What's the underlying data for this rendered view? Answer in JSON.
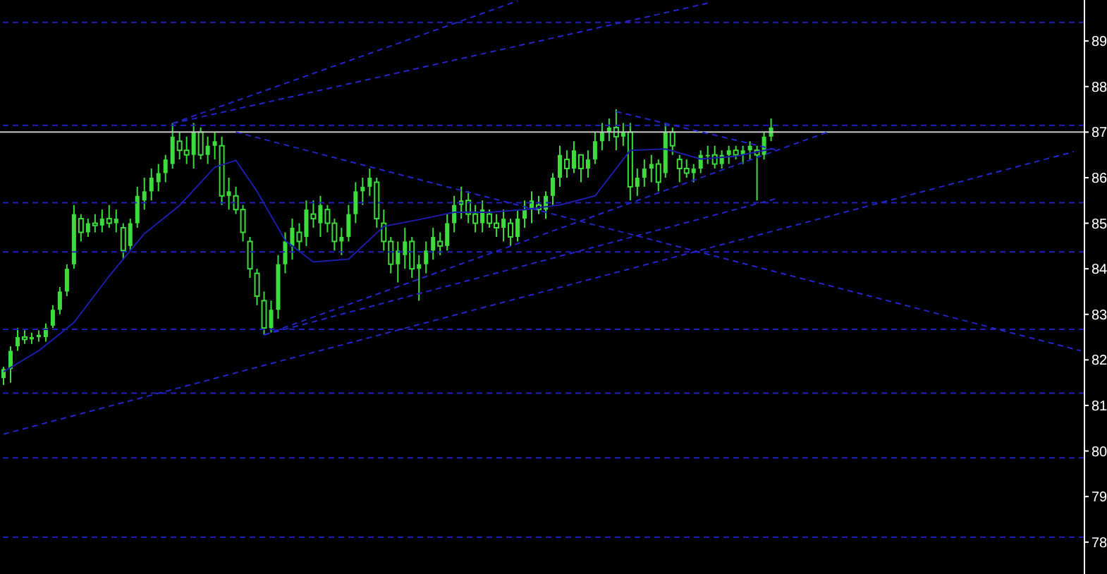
{
  "chart_data": {
    "type": "candlestick",
    "color": "#3ddc3d",
    "categories": [
      null,
      null,
      null,
      null,
      null,
      null,
      null,
      null,
      null,
      null,
      null,
      null,
      null,
      null,
      null,
      null,
      null,
      null,
      null,
      null,
      null,
      null,
      null,
      null,
      null,
      null,
      null,
      null,
      null,
      null,
      null,
      null,
      null,
      null,
      null,
      null,
      null,
      null,
      null,
      null,
      null,
      null,
      null,
      null,
      null,
      null,
      null,
      null,
      null,
      null,
      null,
      null,
      null,
      null,
      null,
      null,
      null,
      null,
      null,
      null,
      null,
      null,
      null,
      null,
      null,
      null,
      null,
      null,
      null,
      null,
      null,
      null,
      null,
      null,
      null,
      null,
      null,
      null,
      null,
      null,
      null,
      null,
      null,
      null,
      null,
      null,
      null,
      null,
      null,
      null,
      null,
      null,
      null,
      null,
      null,
      null,
      null,
      null,
      null,
      null,
      null,
      null,
      null,
      null,
      null,
      null,
      null,
      null,
      null,
      null,
      null,
      null,
      null,
      null,
      null,
      null,
      null,
      null,
      null,
      null,
      null,
      null,
      null,
      null,
      null,
      null,
      null,
      null,
      null,
      null,
      null,
      null,
      null,
      null,
      null,
      null,
      null,
      null,
      null,
      null,
      null,
      null,
      null,
      null,
      null,
      null,
      null,
      null,
      null,
      null,
      null,
      null,
      null,
      null
    ],
    "ohlc": [
      [
        81.6,
        81.85,
        81.45,
        81.8
      ],
      [
        81.8,
        82.3,
        81.5,
        82.2
      ],
      [
        82.3,
        82.7,
        82.2,
        82.5
      ],
      [
        82.5,
        82.65,
        82.35,
        82.45
      ],
      [
        82.45,
        82.6,
        82.35,
        82.5
      ],
      [
        82.5,
        82.65,
        82.4,
        82.55
      ],
      [
        82.5,
        82.8,
        82.4,
        82.7
      ],
      [
        82.75,
        83.2,
        82.7,
        83.1
      ],
      [
        83.1,
        83.6,
        83.0,
        83.5
      ],
      [
        83.5,
        84.1,
        83.4,
        84.0
      ],
      [
        84.1,
        85.4,
        84.0,
        85.2
      ],
      [
        85.1,
        85.2,
        84.6,
        84.8
      ],
      [
        84.8,
        85.1,
        84.7,
        85.0
      ],
      [
        85.0,
        85.2,
        84.8,
        84.95
      ],
      [
        84.95,
        85.3,
        84.8,
        85.1
      ],
      [
        85.1,
        85.4,
        84.9,
        85.0
      ],
      [
        85.0,
        85.3,
        84.8,
        85.1
      ],
      [
        84.9,
        85.0,
        84.2,
        84.4
      ],
      [
        84.5,
        85.1,
        84.4,
        85.0
      ],
      [
        85.0,
        85.8,
        84.9,
        85.6
      ],
      [
        85.5,
        86.0,
        85.3,
        85.7
      ],
      [
        85.7,
        86.2,
        85.5,
        86.0
      ],
      [
        85.9,
        86.3,
        85.7,
        86.1
      ],
      [
        86.1,
        86.5,
        85.9,
        86.4
      ],
      [
        86.3,
        87.2,
        86.2,
        86.9
      ],
      [
        86.8,
        87.0,
        86.4,
        86.6
      ],
      [
        86.6,
        86.9,
        86.3,
        86.5
      ],
      [
        86.5,
        87.2,
        86.2,
        87.0
      ],
      [
        87.0,
        87.1,
        86.4,
        86.5
      ],
      [
        86.5,
        86.9,
        86.3,
        86.7
      ],
      [
        86.7,
        87.0,
        86.4,
        86.8
      ],
      [
        86.7,
        86.9,
        85.4,
        85.6
      ],
      [
        85.6,
        86.0,
        85.3,
        85.7
      ],
      [
        85.6,
        85.8,
        85.2,
        85.3
      ],
      [
        85.3,
        85.4,
        84.6,
        84.8
      ],
      [
        84.6,
        84.7,
        83.8,
        84.0
      ],
      [
        83.9,
        84.0,
        83.2,
        83.4
      ],
      [
        83.3,
        83.5,
        82.55,
        82.7
      ],
      [
        82.7,
        83.3,
        82.6,
        83.1
      ],
      [
        83.1,
        84.3,
        82.9,
        84.1
      ],
      [
        84.1,
        84.8,
        83.9,
        84.6
      ],
      [
        84.5,
        85.1,
        84.2,
        84.9
      ],
      [
        84.8,
        85.0,
        84.4,
        84.6
      ],
      [
        84.7,
        85.5,
        84.5,
        85.3
      ],
      [
        85.2,
        85.5,
        84.9,
        85.1
      ],
      [
        85.0,
        85.6,
        84.7,
        85.4
      ],
      [
        85.3,
        85.4,
        84.8,
        85.0
      ],
      [
        85.0,
        85.1,
        84.4,
        84.6
      ],
      [
        84.6,
        84.9,
        84.3,
        84.7
      ],
      [
        84.7,
        85.4,
        84.6,
        85.2
      ],
      [
        85.2,
        85.9,
        85.0,
        85.7
      ],
      [
        85.7,
        86.0,
        85.4,
        85.8
      ],
      [
        85.8,
        86.2,
        85.6,
        86.0
      ],
      [
        85.9,
        86.0,
        84.9,
        85.1
      ],
      [
        85.0,
        85.3,
        84.4,
        84.6
      ],
      [
        84.6,
        84.7,
        83.9,
        84.1
      ],
      [
        84.1,
        84.6,
        83.7,
        84.4
      ],
      [
        84.3,
        84.9,
        84.0,
        84.6
      ],
      [
        84.6,
        84.7,
        83.8,
        84.0
      ],
      [
        84.0,
        84.3,
        83.3,
        84.1
      ],
      [
        84.1,
        84.6,
        83.9,
        84.4
      ],
      [
        84.4,
        84.9,
        84.2,
        84.7
      ],
      [
        84.6,
        84.8,
        84.3,
        84.5
      ],
      [
        84.5,
        85.2,
        84.4,
        85.0
      ],
      [
        85.0,
        85.6,
        84.8,
        85.4
      ],
      [
        85.4,
        85.8,
        85.1,
        85.5
      ],
      [
        85.5,
        85.7,
        85.0,
        85.2
      ],
      [
        85.2,
        85.4,
        84.8,
        85.0
      ],
      [
        85.0,
        85.5,
        84.8,
        85.3
      ],
      [
        85.2,
        85.3,
        84.9,
        85.0
      ],
      [
        85.0,
        85.2,
        84.7,
        84.9
      ],
      [
        84.9,
        85.3,
        84.6,
        85.1
      ],
      [
        85.0,
        85.1,
        84.5,
        84.7
      ],
      [
        84.7,
        85.3,
        84.6,
        85.1
      ],
      [
        85.1,
        85.5,
        84.9,
        85.3
      ],
      [
        85.3,
        85.7,
        85.0,
        85.5
      ],
      [
        85.4,
        85.6,
        85.2,
        85.3
      ],
      [
        85.3,
        85.7,
        85.1,
        85.6
      ],
      [
        85.6,
        86.1,
        85.4,
        86.0
      ],
      [
        86.0,
        86.7,
        85.8,
        86.5
      ],
      [
        86.4,
        86.6,
        86.0,
        86.2
      ],
      [
        86.2,
        86.8,
        86.1,
        86.6
      ],
      [
        86.5,
        86.5,
        85.9,
        86.2
      ],
      [
        86.2,
        86.6,
        86.0,
        86.4
      ],
      [
        86.4,
        87.0,
        86.3,
        86.8
      ],
      [
        86.8,
        87.2,
        86.6,
        87.0
      ],
      [
        87.0,
        87.3,
        86.8,
        87.1
      ],
      [
        87.1,
        87.5,
        86.6,
        86.9
      ],
      [
        86.9,
        87.2,
        86.7,
        87.0
      ],
      [
        87.0,
        87.2,
        85.5,
        85.8
      ],
      [
        85.8,
        86.2,
        85.6,
        86.0
      ],
      [
        86.0,
        86.4,
        85.8,
        86.2
      ],
      [
        86.2,
        86.5,
        85.9,
        86.3
      ],
      [
        86.3,
        86.4,
        85.7,
        85.9
      ],
      [
        86.1,
        87.2,
        86.0,
        87.0
      ],
      [
        87.0,
        87.1,
        86.5,
        86.7
      ],
      [
        86.4,
        86.5,
        85.9,
        86.2
      ],
      [
        86.2,
        86.4,
        86.0,
        86.1
      ],
      [
        86.1,
        86.3,
        85.9,
        86.2
      ],
      [
        86.2,
        86.6,
        86.1,
        86.5
      ],
      [
        86.5,
        86.7,
        86.3,
        86.5
      ],
      [
        86.5,
        86.7,
        86.2,
        86.3
      ],
      [
        86.3,
        86.6,
        86.2,
        86.5
      ],
      [
        86.5,
        86.7,
        86.3,
        86.6
      ],
      [
        86.6,
        86.7,
        86.4,
        86.5
      ],
      [
        86.5,
        86.7,
        86.3,
        86.6
      ],
      [
        86.6,
        86.8,
        86.4,
        86.7
      ],
      [
        86.6,
        86.7,
        85.5,
        86.5
      ],
      [
        86.5,
        87.0,
        86.4,
        86.9
      ],
      [
        86.9,
        87.3,
        86.8,
        87.1
      ],
      null,
      null,
      null,
      null,
      null,
      null,
      null,
      null,
      null,
      null,
      null,
      null,
      null,
      null,
      null,
      null,
      null,
      null,
      null,
      null,
      null,
      null,
      null,
      null,
      null,
      null,
      null,
      null,
      null,
      null,
      null,
      null,
      null,
      null,
      null,
      null,
      null,
      null,
      null,
      null,
      null,
      null,
      null,
      null
    ],
    "series": [
      {
        "type": "line",
        "color": "#1c1ca8",
        "line_style": "solid",
        "values": [
          81.74,
          null,
          null,
          null,
          null,
          82.2,
          null,
          null,
          null,
          null,
          82.82,
          null,
          null,
          null,
          null,
          83.84,
          null,
          null,
          null,
          null,
          84.77,
          null,
          null,
          null,
          null,
          85.39,
          null,
          null,
          null,
          null,
          86.23,
          null,
          null,
          86.38,
          null,
          null,
          85.7,
          null,
          null,
          null,
          84.62,
          null,
          null,
          null,
          84.15,
          null,
          null,
          null,
          null,
          84.21,
          null,
          null,
          null,
          null,
          84.93,
          null,
          null,
          null,
          null,
          85.08,
          null,
          null,
          null,
          null,
          85.24,
          null,
          null,
          null,
          null,
          85.24,
          null,
          null,
          null,
          null,
          85.3,
          null,
          null,
          null,
          null,
          85.4,
          null,
          null,
          null,
          null,
          85.6,
          null,
          null,
          null,
          null,
          86.6,
          null,
          null,
          null,
          null,
          86.63,
          null,
          null,
          null,
          null,
          86.41,
          null,
          null,
          null,
          null,
          86.47,
          null,
          null,
          null,
          null,
          86.63,
          null,
          null,
          null,
          null,
          null,
          null,
          null,
          null,
          null,
          null,
          null,
          null,
          null,
          null,
          null,
          null,
          null,
          null,
          null,
          null,
          null,
          null,
          null,
          null,
          null,
          null,
          null,
          null,
          null,
          null,
          null,
          null,
          null,
          null,
          null,
          null,
          null,
          null,
          null,
          null,
          null,
          null,
          null,
          null
        ]
      },
      {
        "type": "line",
        "color": "#2424c8",
        "line_style": "dashed",
        "values": [
          null,
          null,
          null,
          null,
          null,
          null,
          null,
          null,
          null,
          null,
          null,
          null,
          null,
          null,
          null,
          null,
          null,
          null,
          null,
          null,
          null,
          null,
          null,
          null,
          87.19,
          null,
          null,
          null,
          null,
          null,
          null,
          null,
          null,
          null,
          null,
          null,
          null,
          null,
          null,
          null,
          null,
          null,
          null,
          null,
          null,
          null,
          null,
          null,
          null,
          null,
          null,
          null,
          null,
          null,
          null,
          null,
          null,
          null,
          null,
          null,
          null,
          null,
          null,
          null,
          null,
          null,
          null,
          null,
          null,
          null,
          null,
          null,
          null,
          89.88,
          null,
          null,
          null,
          null,
          null,
          null,
          null,
          null,
          null,
          null,
          null,
          null,
          null,
          null,
          null,
          null,
          null,
          null,
          null,
          null,
          null,
          null,
          null,
          null,
          null,
          null,
          null,
          null,
          null,
          null,
          null,
          null,
          null,
          null,
          null,
          null,
          null,
          null,
          null,
          null,
          null,
          null,
          null,
          null,
          null,
          null,
          null,
          null,
          null,
          null,
          null,
          null,
          null,
          null,
          null,
          null,
          null,
          null,
          null,
          null,
          null,
          null,
          null,
          null,
          null,
          null,
          null,
          null,
          null,
          null,
          null,
          null,
          null,
          null,
          null,
          null,
          null,
          null,
          null,
          null
        ]
      },
      {
        "type": "line",
        "color": "#2424c8",
        "line_style": "dashed",
        "values": [
          null,
          null,
          null,
          null,
          null,
          null,
          null,
          null,
          null,
          null,
          null,
          null,
          null,
          null,
          null,
          null,
          null,
          null,
          null,
          null,
          null,
          null,
          null,
          null,
          87.19,
          null,
          null,
          null,
          null,
          null,
          null,
          null,
          null,
          null,
          null,
          null,
          null,
          null,
          null,
          null,
          null,
          null,
          null,
          null,
          null,
          null,
          null,
          null,
          null,
          null,
          null,
          null,
          null,
          null,
          null,
          null,
          null,
          null,
          null,
          null,
          null,
          null,
          null,
          null,
          null,
          null,
          null,
          null,
          null,
          null,
          null,
          null,
          null,
          null,
          null,
          null,
          null,
          null,
          null,
          null,
          null,
          null,
          null,
          null,
          null,
          null,
          null,
          null,
          null,
          null,
          null,
          null,
          null,
          null,
          null,
          null,
          null,
          null,
          null,
          null,
          89.83,
          null,
          null,
          null,
          null,
          null,
          null,
          null,
          null,
          null,
          null,
          null,
          null,
          null,
          null,
          null,
          null,
          null,
          null,
          null,
          null,
          null,
          null,
          null,
          null,
          null,
          null,
          null,
          null,
          null,
          null,
          null,
          null,
          null,
          null,
          null,
          null,
          null,
          null,
          null,
          null,
          null,
          null,
          null,
          null,
          null,
          null,
          null,
          null,
          null,
          null,
          null,
          null,
          null
        ]
      },
      {
        "type": "line",
        "color": "#2424c8",
        "line_style": "dashed",
        "values": [
          null,
          null,
          null,
          null,
          null,
          null,
          null,
          null,
          null,
          null,
          null,
          null,
          null,
          null,
          null,
          null,
          null,
          null,
          null,
          null,
          null,
          null,
          null,
          null,
          null,
          null,
          null,
          null,
          null,
          null,
          null,
          null,
          null,
          87.0,
          null,
          null,
          null,
          null,
          null,
          null,
          null,
          null,
          null,
          null,
          null,
          null,
          null,
          null,
          null,
          null,
          null,
          null,
          null,
          null,
          null,
          null,
          null,
          null,
          null,
          null,
          null,
          null,
          null,
          null,
          null,
          null,
          null,
          null,
          null,
          null,
          null,
          null,
          null,
          null,
          null,
          null,
          null,
          null,
          null,
          null,
          null,
          null,
          null,
          null,
          null,
          null,
          null,
          null,
          null,
          null,
          null,
          null,
          null,
          null,
          null,
          null,
          null,
          null,
          null,
          null,
          null,
          null,
          null,
          null,
          null,
          null,
          null,
          null,
          null,
          null,
          null,
          null,
          null,
          null,
          null,
          null,
          null,
          null,
          null,
          null,
          null,
          null,
          null,
          null,
          null,
          null,
          null,
          null,
          null,
          null,
          null,
          null,
          null,
          null,
          null,
          null,
          null,
          null,
          null,
          null,
          null,
          null,
          null,
          null,
          null,
          null,
          null,
          null,
          null,
          null,
          null,
          null,
          null,
          82.2
        ]
      },
      {
        "type": "line",
        "color": "#2424c8",
        "line_style": "dashed",
        "values": [
          80.37,
          null,
          null,
          null,
          null,
          null,
          null,
          null,
          null,
          null,
          null,
          null,
          null,
          null,
          null,
          null,
          null,
          null,
          null,
          null,
          null,
          null,
          null,
          null,
          null,
          null,
          null,
          null,
          null,
          null,
          null,
          null,
          null,
          null,
          null,
          null,
          null,
          null,
          null,
          null,
          null,
          null,
          null,
          null,
          null,
          null,
          null,
          null,
          null,
          null,
          null,
          null,
          null,
          null,
          null,
          null,
          null,
          null,
          null,
          null,
          null,
          null,
          null,
          null,
          null,
          null,
          null,
          null,
          null,
          null,
          null,
          null,
          null,
          null,
          null,
          null,
          null,
          null,
          null,
          null,
          null,
          null,
          null,
          null,
          null,
          null,
          null,
          null,
          null,
          null,
          null,
          null,
          null,
          null,
          null,
          null,
          null,
          null,
          null,
          null,
          null,
          null,
          null,
          null,
          null,
          null,
          null,
          null,
          null,
          null,
          null,
          null,
          null,
          null,
          null,
          null,
          null,
          null,
          null,
          null,
          null,
          null,
          null,
          null,
          null,
          null,
          null,
          null,
          null,
          null,
          null,
          null,
          null,
          null,
          null,
          null,
          null,
          null,
          null,
          null,
          null,
          null,
          null,
          null,
          null,
          null,
          null,
          null,
          null,
          null,
          null,
          null,
          86.57,
          null
        ]
      },
      {
        "type": "line",
        "color": "#2424c8",
        "line_style": "dashed",
        "values": [
          null,
          null,
          null,
          null,
          null,
          null,
          null,
          null,
          null,
          null,
          null,
          null,
          null,
          null,
          null,
          null,
          null,
          null,
          null,
          null,
          null,
          null,
          null,
          null,
          null,
          null,
          null,
          null,
          null,
          null,
          null,
          null,
          null,
          null,
          null,
          null,
          null,
          82.55,
          null,
          null,
          null,
          null,
          null,
          null,
          null,
          null,
          null,
          null,
          null,
          null,
          null,
          null,
          null,
          null,
          null,
          null,
          null,
          null,
          null,
          null,
          null,
          null,
          null,
          null,
          null,
          null,
          null,
          null,
          null,
          null,
          null,
          null,
          null,
          null,
          null,
          null,
          null,
          null,
          null,
          null,
          null,
          null,
          null,
          null,
          null,
          null,
          null,
          null,
          null,
          null,
          null,
          null,
          null,
          null,
          null,
          null,
          null,
          null,
          null,
          null,
          null,
          null,
          null,
          null,
          null,
          null,
          null,
          null,
          null,
          null,
          null,
          null,
          null,
          null,
          null,
          null,
          null,
          87.0,
          null,
          null,
          null,
          null,
          null,
          null,
          null,
          null,
          null,
          null,
          null,
          null,
          null,
          null,
          null,
          null,
          null,
          null,
          null,
          null,
          null,
          null,
          null,
          null,
          null,
          null,
          null,
          null,
          null,
          null,
          null,
          null,
          null,
          null,
          null,
          null
        ]
      },
      {
        "type": "line",
        "color": "#2424c8",
        "line_style": "dashed",
        "values": [
          null,
          null,
          null,
          null,
          null,
          null,
          null,
          null,
          null,
          null,
          null,
          null,
          null,
          null,
          null,
          null,
          null,
          null,
          null,
          null,
          null,
          null,
          null,
          null,
          null,
          null,
          null,
          null,
          null,
          null,
          null,
          null,
          null,
          null,
          null,
          null,
          null,
          82.55,
          null,
          null,
          null,
          null,
          null,
          null,
          null,
          null,
          null,
          null,
          null,
          null,
          null,
          null,
          null,
          null,
          null,
          null,
          null,
          null,
          null,
          null,
          null,
          null,
          null,
          null,
          null,
          null,
          null,
          null,
          null,
          null,
          null,
          null,
          null,
          null,
          null,
          null,
          null,
          null,
          null,
          null,
          null,
          null,
          null,
          null,
          null,
          null,
          null,
          null,
          null,
          null,
          null,
          null,
          null,
          null,
          null,
          null,
          null,
          null,
          null,
          null,
          null,
          null,
          null,
          null,
          null,
          null,
          null,
          null,
          null,
          null,
          85.55,
          null,
          null,
          null,
          null,
          null,
          null,
          null,
          null,
          null,
          null,
          null,
          null,
          null,
          null,
          null,
          null,
          null,
          null,
          null,
          null,
          null,
          null,
          null,
          null,
          null,
          null,
          null,
          null,
          null,
          null,
          null,
          null,
          null,
          null,
          null,
          null,
          null,
          null,
          null,
          null,
          null,
          null,
          null
        ]
      },
      {
        "type": "line",
        "color": "#2424c8",
        "line_style": "dashed",
        "values": [
          null,
          null,
          null,
          null,
          null,
          null,
          null,
          null,
          null,
          null,
          null,
          null,
          null,
          null,
          null,
          null,
          null,
          null,
          null,
          null,
          null,
          null,
          null,
          null,
          null,
          null,
          null,
          null,
          null,
          null,
          null,
          null,
          null,
          null,
          null,
          null,
          null,
          null,
          null,
          null,
          null,
          null,
          null,
          null,
          null,
          null,
          null,
          null,
          null,
          null,
          null,
          null,
          null,
          null,
          null,
          null,
          null,
          null,
          null,
          null,
          null,
          null,
          null,
          null,
          null,
          null,
          null,
          null,
          null,
          null,
          null,
          null,
          null,
          null,
          null,
          null,
          null,
          null,
          null,
          null,
          null,
          null,
          null,
          null,
          null,
          null,
          null,
          87.45,
          null,
          null,
          null,
          null,
          null,
          null,
          null,
          null,
          null,
          null,
          null,
          null,
          null,
          null,
          null,
          null,
          null,
          null,
          null,
          null,
          null,
          null,
          86.6,
          null,
          null,
          null,
          null,
          null,
          null,
          null,
          null,
          null,
          null,
          null,
          null,
          null,
          null,
          null,
          null,
          null,
          null,
          null,
          null,
          null,
          null,
          null,
          null,
          null,
          null,
          null,
          null,
          null,
          null,
          null,
          null,
          null,
          null,
          null,
          null,
          null,
          null,
          null,
          null,
          null,
          null,
          null
        ]
      }
    ],
    "ref_lines": [
      {
        "axis": "y",
        "value": 89.41,
        "color": "#2020b8",
        "line_style": "dashed"
      },
      {
        "axis": "y",
        "value": 87.15,
        "color": "#2020b8",
        "line_style": "dashed"
      },
      {
        "axis": "y",
        "value": 87.0,
        "color": "#c8c8c8",
        "line_style": "solid"
      },
      {
        "axis": "y",
        "value": 85.45,
        "color": "#2020b8",
        "line_style": "dashed"
      },
      {
        "axis": "y",
        "value": 84.37,
        "color": "#2020b8",
        "line_style": "dashed"
      },
      {
        "axis": "y",
        "value": 82.67,
        "color": "#2020b8",
        "line_style": "dashed"
      },
      {
        "axis": "y",
        "value": 81.27,
        "color": "#2020b8",
        "line_style": "dashed"
      },
      {
        "axis": "y",
        "value": 79.85,
        "color": "#2020b8",
        "line_style": "dashed"
      },
      {
        "axis": "y",
        "value": 78.11,
        "color": "#2020b8",
        "line_style": "dashed"
      }
    ],
    "ylim": [
      77.3,
      89.9
    ],
    "yticks": [
      78,
      79,
      80,
      81,
      82,
      83,
      84,
      85,
      86,
      87,
      88,
      89
    ],
    "tick_labels": "y"
  }
}
